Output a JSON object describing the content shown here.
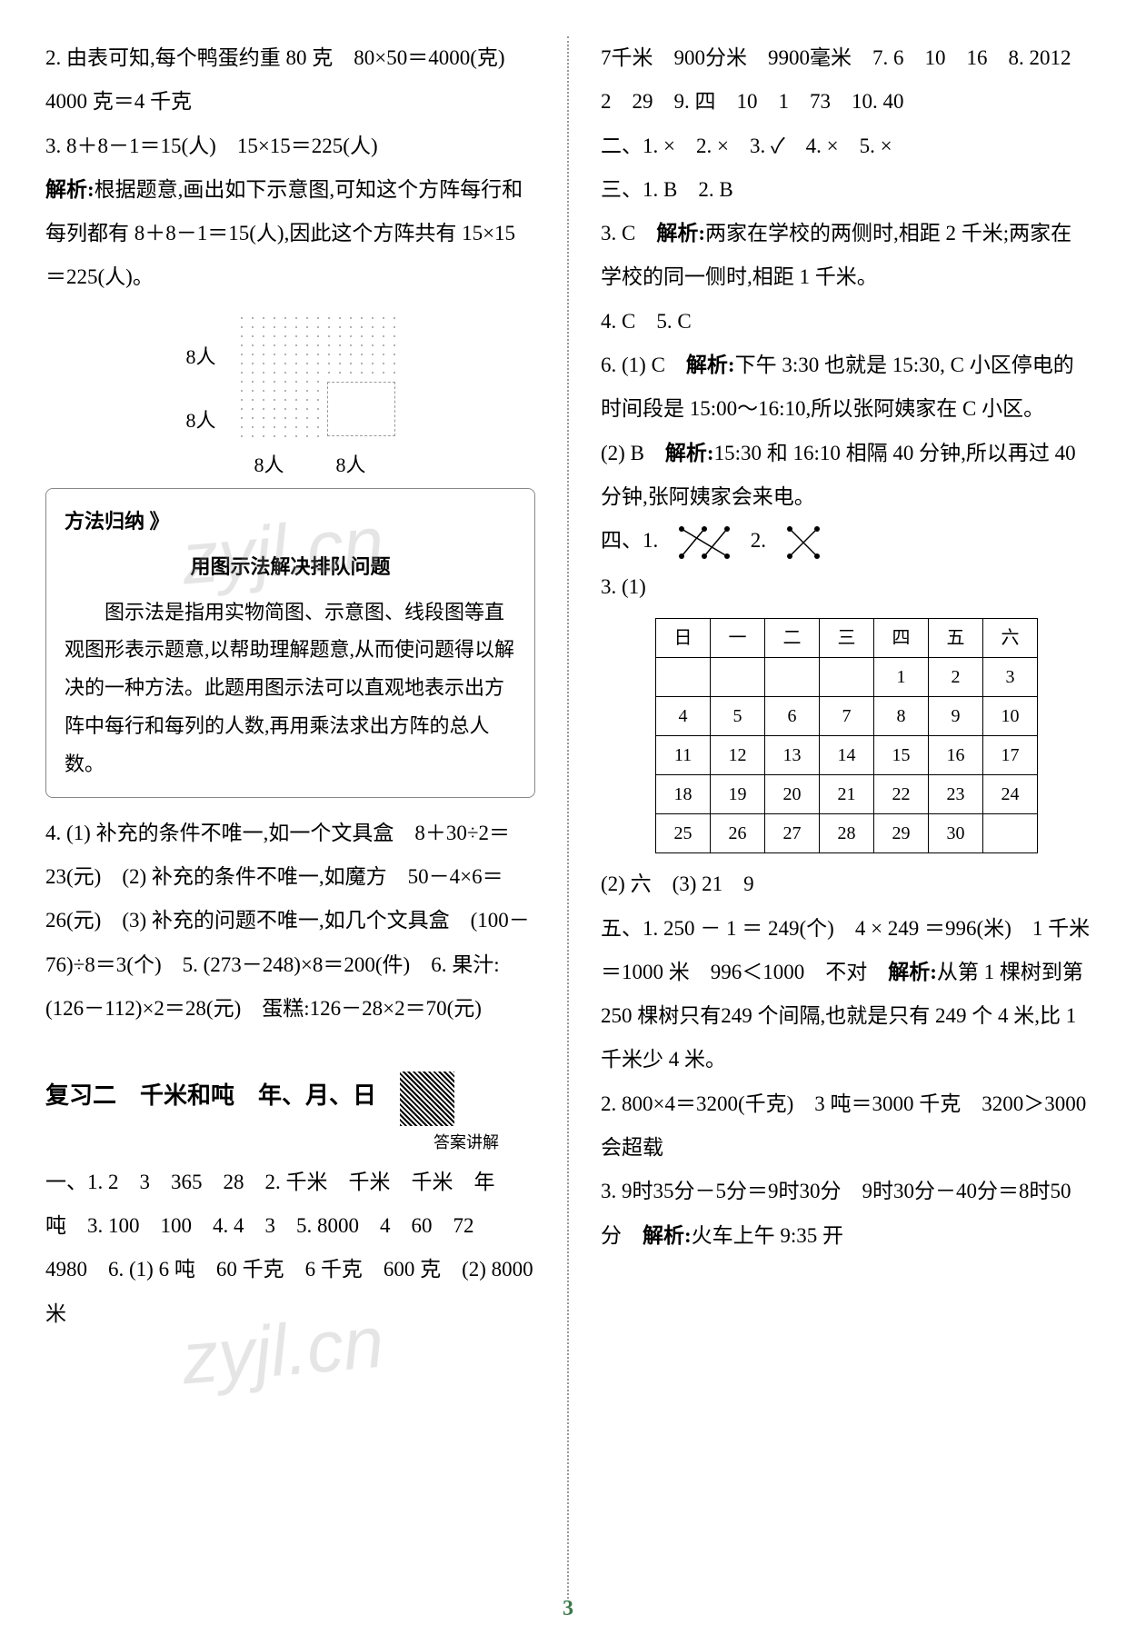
{
  "left_col": {
    "p1": "2. 由表可知,每个鸭蛋约重 80 克　80×50＝4000(克)　4000 克＝4 千克",
    "p2": "3. 8＋8－1＝15(人)　15×15＝225(人)",
    "p3_label": "解析:",
    "p3": "根据题意,画出如下示意图,可知这个方阵每行和每列都有 8＋8－1＝15(人),因此这个方阵共有 15×15＝225(人)。",
    "diagram": {
      "label_left_top": "8人",
      "label_left_bottom": "8人",
      "label_bottom_left": "8人",
      "label_bottom_right": "8人"
    },
    "method_box": {
      "title": "方法归纳 》",
      "subtitle": "用图示法解决排队问题",
      "text": "图示法是指用实物简图、示意图、线段图等直观图形表示题意,以帮助理解题意,从而使问题得以解决的一种方法。此题用图示法可以直观地表示出方阵中每行和每列的人数,再用乘法求出方阵的总人数。"
    },
    "p4": "4. (1) 补充的条件不唯一,如一个文具盒　8＋30÷2＝23(元)　(2) 补充的条件不唯一,如魔方　50－4×6＝26(元)　(3) 补充的问题不唯一,如几个文具盒　(100－76)÷8＝3(个)　5. (273－248)×8＝200(件)　6. 果汁:(126－112)×2＝28(元)　蛋糕:126－28×2＝70(元)",
    "section_title": "复习二　千米和吨　年、月、日",
    "qr_caption": "答案讲解",
    "p5": "一、1. 2　3　365　28　2. 千米　千米　千米　年　吨　3. 100　100　4. 4　3　5. 8000　4　60　72　4980　6. (1) 6 吨　60 千克　6 千克　600 克　(2) 8000 米"
  },
  "right_col": {
    "p1": "7千米　900分米　9900毫米　7. 6　10　16　8. 2012　2　29　9. 四　10　1　73　10. 40",
    "p2": "二、1. ×　2. ×　3. ✓　4. ×　5. ×",
    "p3": "三、1. B　2. B",
    "p4_num": "3. C　",
    "p4_label": "解析:",
    "p4": "两家在学校的两侧时,相距 2 千米;两家在学校的同一侧时,相距 1 千米。",
    "p5": "4. C　5. C",
    "p6_num": "6. (1) C　",
    "p6_label": "解析:",
    "p6": "下午 3:30 也就是 15:30, C 小区停电的时间段是 15:00～16:10,所以张阿姨家在 C 小区。",
    "p7_num": "(2) B　",
    "p7_label": "解析:",
    "p7": "15:30 和 16:10 相隔 40 分钟,所以再过 40 分钟,张阿姨家会来电。",
    "p8": "四、1.",
    "p8b": "2.",
    "p9": "3. (1)",
    "calendar": {
      "headers": [
        "日",
        "一",
        "二",
        "三",
        "四",
        "五",
        "六"
      ],
      "rows": [
        [
          "",
          "",
          "",
          "",
          "1",
          "2",
          "3"
        ],
        [
          "4",
          "5",
          "6",
          "7",
          "8",
          "9",
          "10"
        ],
        [
          "11",
          "12",
          "13",
          "14",
          "15",
          "16",
          "17"
        ],
        [
          "18",
          "19",
          "20",
          "21",
          "22",
          "23",
          "24"
        ],
        [
          "25",
          "26",
          "27",
          "28",
          "29",
          "30",
          ""
        ]
      ]
    },
    "p10": "(2) 六　(3) 21　9",
    "p11_num": "五、1. ",
    "p11": "250 － 1 ＝ 249(个)　4 × 249 ＝996(米)　1 千米＝1000 米　996＜1000　不对　",
    "p11_label": "解析:",
    "p11b": "从第 1 棵树到第 250 棵树只有249 个间隔,也就是只有 249 个 4 米,比 1 千米少 4 米。",
    "p12": "2. 800×4＝3200(千克)　3 吨＝3000 千克　3200＞3000　会超载",
    "p13_num": "3. ",
    "p13": "9时35分－5分＝9时30分　9时30分－40分＝8时50分　",
    "p13_label": "解析:",
    "p13b": "火车上午 9:35 开"
  },
  "page_number": "3",
  "watermark": "zyjl.cn"
}
